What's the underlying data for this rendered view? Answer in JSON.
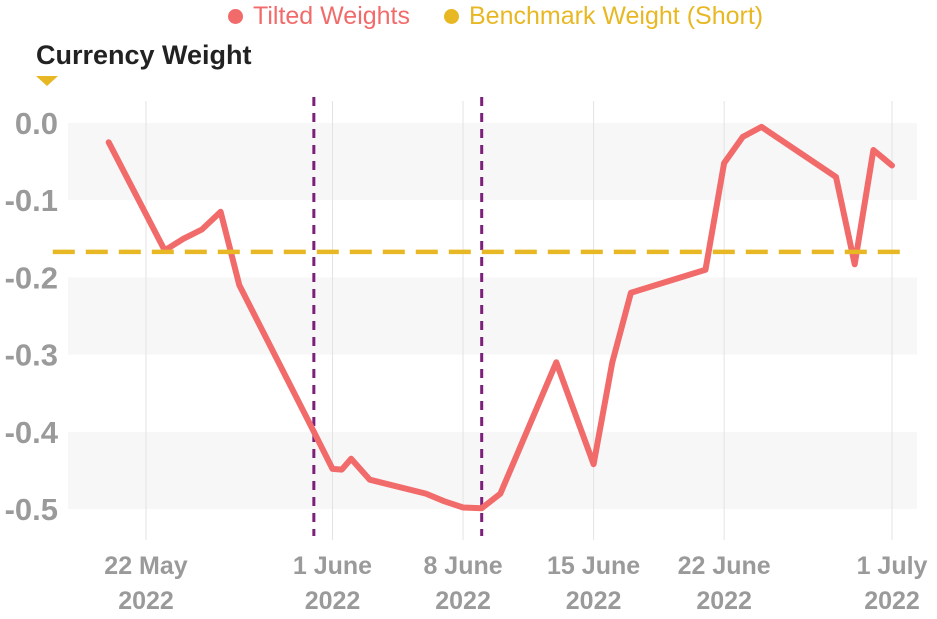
{
  "legend": {
    "tilted_label": "Tilted Weights",
    "benchmark_label": "Benchmark Weight (Short)"
  },
  "colors": {
    "tilted": "#f26b6b",
    "benchmark": "#e8b824",
    "event_line": "#7b1f7a",
    "grid": "#e3e3e3",
    "band": "#f7f7f7",
    "tick_text": "#9a9a9a"
  },
  "chart_data": {
    "type": "line",
    "title": "",
    "ylabel": "Currency Weight",
    "xlabel": "",
    "ylim": [
      -0.53,
      0.01
    ],
    "xlim": [
      "2022-05-17",
      "2022-07-02"
    ],
    "y_ticks": [
      0.0,
      -0.1,
      -0.2,
      -0.3,
      -0.4,
      -0.5
    ],
    "y_tick_labels": [
      "0.0",
      "-0.1",
      "-0.2",
      "-0.3",
      "-0.4",
      "-0.5"
    ],
    "x_ticks": [
      {
        "date": "2022-05-22",
        "line1": "22 May",
        "line2": "2022"
      },
      {
        "date": "2022-06-01",
        "line1": "1 June",
        "line2": "2022"
      },
      {
        "date": "2022-06-08",
        "line1": "8 June",
        "line2": "2022"
      },
      {
        "date": "2022-06-15",
        "line1": "15 June",
        "line2": "2022"
      },
      {
        "date": "2022-06-22",
        "line1": "22 June",
        "line2": "2022"
      },
      {
        "date": "2022-07-01",
        "line1": "1 July",
        "line2": "2022"
      }
    ],
    "grid": true,
    "legend_position": "top",
    "series": [
      {
        "name": "Tilted Weights",
        "style": "solid",
        "points": [
          {
            "x": "2022-05-20",
            "y": -0.025
          },
          {
            "x": "2022-05-23",
            "y": -0.165
          },
          {
            "x": "2022-05-24",
            "y": -0.15
          },
          {
            "x": "2022-05-25",
            "y": -0.138
          },
          {
            "x": "2022-05-26",
            "y": -0.115
          },
          {
            "x": "2022-05-27",
            "y": -0.21
          },
          {
            "x": "2022-05-31",
            "y": -0.4
          },
          {
            "x": "2022-06-01",
            "y": -0.448
          },
          {
            "x": "2022-06-01T12:00",
            "y": -0.449
          },
          {
            "x": "2022-06-02",
            "y": -0.435
          },
          {
            "x": "2022-06-03",
            "y": -0.462
          },
          {
            "x": "2022-06-06",
            "y": -0.48
          },
          {
            "x": "2022-06-07",
            "y": -0.49
          },
          {
            "x": "2022-06-08",
            "y": -0.498
          },
          {
            "x": "2022-06-09",
            "y": -0.499
          },
          {
            "x": "2022-06-10",
            "y": -0.48
          },
          {
            "x": "2022-06-13",
            "y": -0.31
          },
          {
            "x": "2022-06-15",
            "y": -0.442
          },
          {
            "x": "2022-06-16",
            "y": -0.31
          },
          {
            "x": "2022-06-17",
            "y": -0.22
          },
          {
            "x": "2022-06-21",
            "y": -0.19
          },
          {
            "x": "2022-06-22",
            "y": -0.052
          },
          {
            "x": "2022-06-23",
            "y": -0.018
          },
          {
            "x": "2022-06-24",
            "y": -0.005
          },
          {
            "x": "2022-06-28",
            "y": -0.07
          },
          {
            "x": "2022-06-29",
            "y": -0.183
          },
          {
            "x": "2022-06-30",
            "y": -0.035
          },
          {
            "x": "2022-07-01",
            "y": -0.055
          }
        ]
      },
      {
        "name": "Benchmark Weight (Short)",
        "style": "dashed",
        "points": [
          {
            "x": "2022-05-17",
            "y": -0.167
          },
          {
            "x": "2022-07-02",
            "y": -0.167
          }
        ]
      }
    ],
    "event_lines": [
      "2022-05-31",
      "2022-06-09"
    ]
  }
}
